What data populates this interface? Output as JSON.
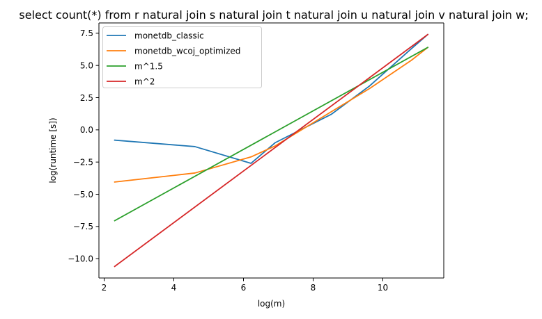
{
  "chart_data": {
    "type": "line",
    "title": "select count(*) from r natural join s natural join t natural join u natural join v natural join w;",
    "xlabel": "log(m)",
    "ylabel": "log(runtime [s])",
    "xlim": [
      1.85,
      11.75
    ],
    "ylim": [
      -11.5,
      8.3
    ],
    "xticks": [
      2,
      4,
      6,
      8,
      10
    ],
    "xtick_labels": [
      "2",
      "4",
      "6",
      "8",
      "10"
    ],
    "yticks": [
      -10.0,
      -7.5,
      -5.0,
      -2.5,
      0.0,
      2.5,
      5.0,
      7.5
    ],
    "ytick_labels": [
      "−10.0",
      "−7.5",
      "−5.0",
      "−2.5",
      "0.0",
      "2.5",
      "5.0",
      "7.5"
    ],
    "grid": false,
    "legend_position": "upper-left",
    "series": [
      {
        "name": "monetdb_classic",
        "color": "#1f77b4",
        "x": [
          2.303,
          4.605,
          6.215,
          6.908,
          8.517,
          9.616,
          10.82,
          11.29
        ],
        "y": [
          -0.8,
          -1.3,
          -2.6,
          -1.0,
          1.2,
          3.4,
          6.3,
          7.4
        ]
      },
      {
        "name": "monetdb_wcoj_optimized",
        "color": "#ff7f0e",
        "x": [
          2.303,
          4.605,
          6.215,
          6.908,
          8.517,
          9.616,
          10.82,
          11.29
        ],
        "y": [
          -4.05,
          -3.35,
          -2.1,
          -1.25,
          1.4,
          3.2,
          5.4,
          6.4
        ]
      },
      {
        "name": "m^1.5",
        "color": "#2ca02c",
        "x": [
          2.303,
          11.29
        ],
        "y": [
          -7.05,
          6.4
        ]
      },
      {
        "name": "m^2",
        "color": "#d62728",
        "x": [
          2.303,
          11.29
        ],
        "y": [
          -10.6,
          7.4
        ]
      }
    ]
  }
}
